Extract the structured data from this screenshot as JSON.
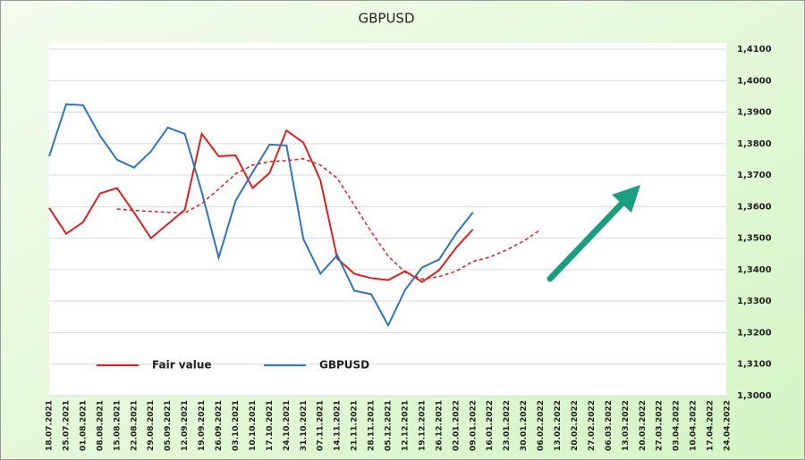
{
  "chart_data": {
    "type": "line",
    "title": "GBPUSD",
    "categories": [
      "18.07.2021",
      "25.07.2021",
      "01.08.2021",
      "08.08.2021",
      "15.08.2021",
      "22.08.2021",
      "29.08.2021",
      "05.09.2021",
      "12.09.2021",
      "19.09.2021",
      "26.09.2021",
      "03.10.2021",
      "10.10.2021",
      "17.10.2021",
      "24.10.2021",
      "31.10.2021",
      "07.11.2021",
      "14.11.2021",
      "21.11.2021",
      "28.11.2021",
      "05.12.2021",
      "12.12.2021",
      "19.12.2021",
      "26.12.2021",
      "02.01.2022",
      "09.01.2022",
      "16.01.2022",
      "23.01.2022",
      "30.01.2022",
      "06.02.2022",
      "13.02.2022",
      "20.02.2022",
      "27.02.2022",
      "06.03.2022",
      "13.03.2022",
      "20.03.2022",
      "27.03.2022",
      "03.04.2022",
      "10.04.2022",
      "17.04.2022",
      "24.04.2022"
    ],
    "series": [
      {
        "name": "Fair value",
        "color": "#e02020",
        "dashed": false,
        "values": [
          1.3596,
          1.3514,
          1.3551,
          1.3642,
          1.3659,
          1.3582,
          1.35,
          1.3545,
          1.359,
          1.3831,
          1.376,
          1.3763,
          1.3659,
          1.3707,
          1.3842,
          1.3803,
          1.3684,
          1.3435,
          1.3387,
          1.3373,
          1.3367,
          1.3395,
          1.3361,
          1.3398,
          1.3469,
          1.3528,
          null,
          null,
          null,
          null,
          null,
          null,
          null,
          null,
          null,
          null,
          null,
          null,
          null,
          null,
          null
        ]
      },
      {
        "name": "GBPUSD",
        "color": "#2e75c0",
        "dashed": false,
        "values": [
          1.376,
          1.3925,
          1.3922,
          1.3825,
          1.3749,
          1.3724,
          1.3775,
          1.3851,
          1.3831,
          1.3647,
          1.3438,
          1.3619,
          1.3709,
          1.3797,
          1.3794,
          1.3497,
          1.3387,
          1.3446,
          1.3333,
          1.3322,
          1.3223,
          1.3336,
          1.3407,
          1.3432,
          1.3514,
          1.3582,
          null,
          null,
          null,
          null,
          null,
          null,
          null,
          null,
          null,
          null,
          null,
          null,
          null,
          null,
          null
        ]
      },
      {
        "color": "#e02020",
        "dashed": true,
        "values": [
          null,
          null,
          null,
          null,
          1.3593,
          1.3588,
          1.3585,
          1.3582,
          1.358,
          1.361,
          1.3656,
          1.3704,
          1.3732,
          1.3743,
          1.3746,
          1.3752,
          1.3732,
          1.369,
          1.3605,
          1.352,
          1.3443,
          1.3392,
          1.337,
          1.3378,
          1.3395,
          1.3426,
          1.344,
          1.3463,
          1.3491,
          1.3528,
          null,
          null,
          null,
          null,
          null,
          null,
          null,
          null,
          null,
          null,
          null
        ]
      }
    ],
    "ylim": [
      1.3,
      1.41
    ],
    "yticks": [
      {
        "value": 1.3,
        "label": "1,3000"
      },
      {
        "value": 1.31,
        "label": "1,3100"
      },
      {
        "value": 1.32,
        "label": "1,3200"
      },
      {
        "value": 1.33,
        "label": "1,3300"
      },
      {
        "value": 1.34,
        "label": "1,3400"
      },
      {
        "value": 1.35,
        "label": "1,3500"
      },
      {
        "value": 1.36,
        "label": "1,3600"
      },
      {
        "value": 1.37,
        "label": "1,3700"
      },
      {
        "value": 1.38,
        "label": "1,3800"
      },
      {
        "value": 1.39,
        "label": "1,3900"
      },
      {
        "value": 1.4,
        "label": "1,4000"
      },
      {
        "value": 1.41,
        "label": "1,4100"
      }
    ],
    "grid": true,
    "y_axis_side": "right",
    "legend": "lower left"
  }
}
